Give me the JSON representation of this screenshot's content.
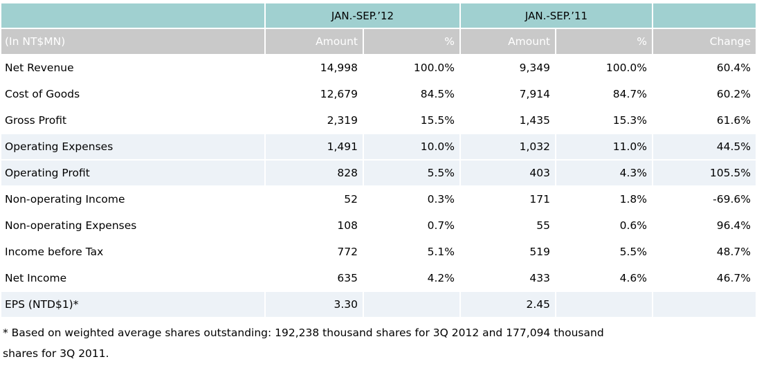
{
  "colors": {
    "group_header_bg": "#A0D0D0",
    "column_header_bg": "#C9C9C9",
    "column_header_text": "#FFFFFF",
    "highlight_row_bg": "#EDF2F7",
    "body_text": "#000000",
    "page_bg": "#FFFFFF"
  },
  "chart_data": {
    "type": "table",
    "title": "Income statement comparison (In NT$MN), JAN.-SEP.’12 vs JAN.-SEP.’11",
    "unit_label": "(In NT$MN)",
    "group_headers": [
      "",
      "JAN.-SEP.’12",
      "JAN.-SEP.’11",
      ""
    ],
    "columns": [
      "(In NT$MN)",
      "Amount",
      "%",
      "Amount",
      "%",
      "Change"
    ],
    "rows": [
      {
        "label": "Net Revenue",
        "amount_2012": "14,998",
        "pct_2012": "100.0%",
        "amount_2011": "9,349",
        "pct_2011": "100.0%",
        "change": "60.4%",
        "highlight": false
      },
      {
        "label": "Cost of Goods",
        "amount_2012": "12,679",
        "pct_2012": "84.5%",
        "amount_2011": "7,914",
        "pct_2011": "84.7%",
        "change": "60.2%",
        "highlight": false
      },
      {
        "label": "Gross Profit",
        "amount_2012": "2,319",
        "pct_2012": "15.5%",
        "amount_2011": "1,435",
        "pct_2011": "15.3%",
        "change": "61.6%",
        "highlight": false
      },
      {
        "label": "Operating Expenses",
        "amount_2012": "1,491",
        "pct_2012": "10.0%",
        "amount_2011": "1,032",
        "pct_2011": "11.0%",
        "change": "44.5%",
        "highlight": true
      },
      {
        "label": "Operating Profit",
        "amount_2012": "828",
        "pct_2012": "5.5%",
        "amount_2011": "403",
        "pct_2011": "4.3%",
        "change": "105.5%",
        "highlight": true
      },
      {
        "label": "Non-operating Income",
        "amount_2012": "52",
        "pct_2012": "0.3%",
        "amount_2011": "171",
        "pct_2011": "1.8%",
        "change": "-69.6%",
        "highlight": false
      },
      {
        "label": "Non-operating Expenses",
        "amount_2012": "108",
        "pct_2012": "0.7%",
        "amount_2011": "55",
        "pct_2011": "0.6%",
        "change": "96.4%",
        "highlight": false
      },
      {
        "label": "Income before Tax",
        "amount_2012": "772",
        "pct_2012": "5.1%",
        "amount_2011": "519",
        "pct_2011": "5.5%",
        "change": "48.7%",
        "highlight": false
      },
      {
        "label": "Net Income",
        "amount_2012": "635",
        "pct_2012": "4.2%",
        "amount_2011": "433",
        "pct_2011": "4.6%",
        "change": "46.7%",
        "highlight": false
      },
      {
        "label": "EPS (NTD$1)*",
        "amount_2012": "3.30",
        "pct_2012": "",
        "amount_2011": "2.45",
        "pct_2011": "",
        "change": "",
        "highlight": true
      }
    ],
    "footnote_line1": "* Based on weighted average shares outstanding: 192,238 thousand shares for 3Q 2012 and 177,094 thousand",
    "footnote_line2": "shares for 3Q 2011."
  }
}
